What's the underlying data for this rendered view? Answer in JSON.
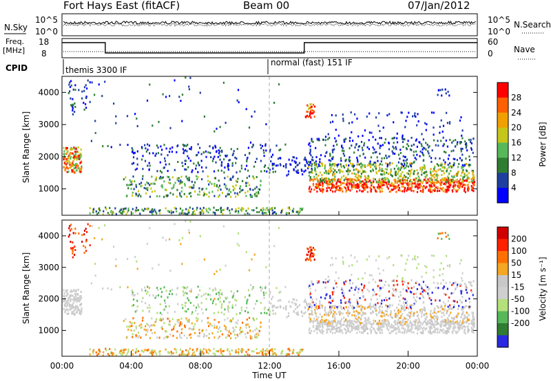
{
  "header": {
    "title": "Fort Hays East (fitACF)",
    "beam": "Beam 00",
    "date": "07/Jan/2012"
  },
  "noise_panel": {
    "left_label": "N.Sky",
    "right_label": "N.Search",
    "left_ticks": [
      "10^5",
      "10^0"
    ],
    "right_ticks": [
      "10^5",
      "10^0"
    ]
  },
  "freq_panel": {
    "left_label_1": "Freq.",
    "left_label_2": "[MHz]",
    "right_label": "Nave",
    "left_ticks": [
      "18",
      "8"
    ],
    "right_ticks": [
      "60",
      "0"
    ]
  },
  "cpid": {
    "label": "CPID",
    "segment_1": "themis 3300 IF",
    "segment_2": "normal (fast) 151 IF"
  },
  "colors": {
    "power_scale": [
      "#0000ff",
      "#1e3fa0",
      "#2e7d32",
      "#57b85a",
      "#c6c61a",
      "#f0a000",
      "#ff6000",
      "#ff0000"
    ],
    "velocity_scale": [
      "#2a2ae0",
      "#2e7d32",
      "#57b85a",
      "#b4e07a",
      "#cfcfcf",
      "#c8c8c8",
      "#f5a623",
      "#ff7000",
      "#ff2000",
      "#d00000"
    ]
  },
  "chart_data": [
    {
      "type": "line",
      "name": "noise",
      "x": [
        "00:00",
        "24:00"
      ],
      "ylim_label": [
        "10^0",
        "10^5"
      ],
      "series": [
        {
          "name": "N.Sky",
          "description_level": 0.55
        },
        {
          "name": "N.Search",
          "description_level": 0.5
        }
      ]
    },
    {
      "type": "line",
      "name": "frequency",
      "ylabel": "Freq. [MHz]",
      "ylim": [
        8,
        18
      ],
      "x": [
        0,
        2.5,
        14.0,
        24.0
      ],
      "series": [
        {
          "name": "Freq.",
          "values": [
            18,
            10.5,
            18,
            18
          ]
        },
        {
          "name": "Nave",
          "values": [
            2,
            2,
            2,
            2
          ]
        }
      ]
    },
    {
      "type": "heatmap",
      "name": "power",
      "ylabel": "Slant Range [km]",
      "xlabel": "",
      "xlim": [
        0,
        24
      ],
      "ylim": [
        180,
        4500
      ],
      "yticks": [
        1000,
        2000,
        3000,
        4000
      ],
      "colorbar_label": "Power [dB]",
      "colorbar_ticks": [
        4,
        8,
        12,
        16,
        20,
        24,
        28
      ]
    },
    {
      "type": "heatmap",
      "name": "velocity",
      "ylabel": "Slant Range [km]",
      "xlabel": "Time UT",
      "xlim": [
        0,
        24
      ],
      "ylim": [
        180,
        4500
      ],
      "yticks": [
        1000,
        2000,
        3000,
        4000
      ],
      "xticks": [
        "00:00",
        "04:00",
        "08:00",
        "12:00",
        "16:00",
        "20:00",
        "00:00"
      ],
      "colorbar_label": "Velocity [m s⁻¹]",
      "colorbar_ticks": [
        200,
        100,
        50,
        15,
        -15,
        -50,
        -100,
        -200
      ]
    }
  ]
}
